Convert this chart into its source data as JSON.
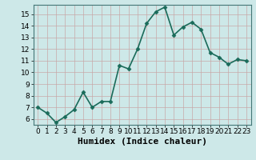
{
  "x": [
    0,
    1,
    2,
    3,
    4,
    5,
    6,
    7,
    8,
    9,
    10,
    11,
    12,
    13,
    14,
    15,
    16,
    17,
    18,
    19,
    20,
    21,
    22,
    23
  ],
  "y": [
    7.0,
    6.5,
    5.7,
    6.2,
    6.8,
    8.3,
    7.0,
    7.5,
    7.5,
    10.6,
    10.3,
    12.0,
    14.2,
    15.2,
    15.6,
    13.2,
    13.9,
    14.3,
    13.7,
    11.7,
    11.3,
    10.7,
    11.1,
    11.0
  ],
  "line_color": "#1a6b5a",
  "marker": "D",
  "marker_size": 2.5,
  "bg_color": "#cde8e8",
  "grid_color": "#b0c8c8",
  "xlabel": "Humidex (Indice chaleur)",
  "xlim": [
    -0.5,
    23.5
  ],
  "ylim": [
    5.5,
    15.8
  ],
  "yticks": [
    6,
    7,
    8,
    9,
    10,
    11,
    12,
    13,
    14,
    15
  ],
  "xticks": [
    0,
    1,
    2,
    3,
    4,
    5,
    6,
    7,
    8,
    9,
    10,
    11,
    12,
    13,
    14,
    15,
    16,
    17,
    18,
    19,
    20,
    21,
    22,
    23
  ],
  "tick_fontsize": 6.5,
  "xlabel_fontsize": 8,
  "line_width": 1.2
}
